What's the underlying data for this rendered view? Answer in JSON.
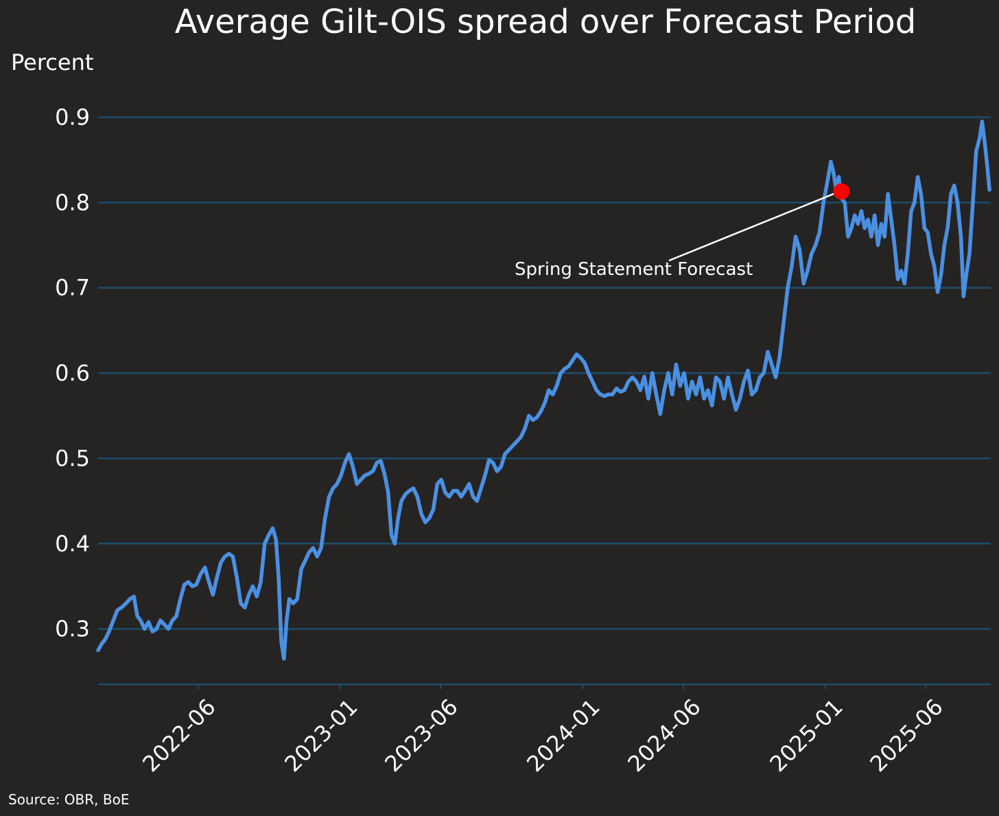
{
  "chart_data": {
    "type": "line",
    "title": "Average Gilt-OIS spread over Forecast Period",
    "ylabel": "Percent",
    "xlabel": "",
    "source": "Source: OBR, BoE",
    "ylim": [
      0.235,
      0.9
    ],
    "xlim": [
      "2022-01-01",
      "2025-09-07"
    ],
    "yticks": [
      0.3,
      0.4,
      0.5,
      0.6,
      0.7,
      0.8,
      0.9
    ],
    "ytick_labels": [
      "0.3",
      "0.4",
      "0.5",
      "0.6",
      "0.7",
      "0.8",
      "0.9"
    ],
    "xticks": [
      "2022-06",
      "2023-01",
      "2023-06",
      "2024-01",
      "2024-06",
      "2025-01",
      "2025-06"
    ],
    "grid": "horizontal",
    "colors": {
      "background": "#262323",
      "line": "#4a90e2",
      "grid": "#1b4f6e",
      "marker": "#ff0000",
      "text": "#ffffff"
    },
    "series": [
      {
        "name": "Average Gilt-OIS spread",
        "points": [
          [
            "2022-01-01",
            0.275
          ],
          [
            "2022-01-06",
            0.282
          ],
          [
            "2022-01-12",
            0.288
          ],
          [
            "2022-01-18",
            0.298
          ],
          [
            "2022-01-24",
            0.31
          ],
          [
            "2022-01-30",
            0.322
          ],
          [
            "2022-02-05",
            0.325
          ],
          [
            "2022-02-12",
            0.33
          ],
          [
            "2022-02-18",
            0.335
          ],
          [
            "2022-02-24",
            0.338
          ],
          [
            "2022-03-01",
            0.315
          ],
          [
            "2022-03-06",
            0.31
          ],
          [
            "2022-03-12",
            0.3
          ],
          [
            "2022-03-18",
            0.308
          ],
          [
            "2022-03-24",
            0.297
          ],
          [
            "2022-03-30",
            0.3
          ],
          [
            "2022-04-05",
            0.31
          ],
          [
            "2022-04-11",
            0.305
          ],
          [
            "2022-04-17",
            0.3
          ],
          [
            "2022-04-23",
            0.31
          ],
          [
            "2022-04-29",
            0.315
          ],
          [
            "2022-05-05",
            0.335
          ],
          [
            "2022-05-11",
            0.352
          ],
          [
            "2022-05-17",
            0.355
          ],
          [
            "2022-05-23",
            0.35
          ],
          [
            "2022-05-29",
            0.352
          ],
          [
            "2022-06-05",
            0.365
          ],
          [
            "2022-06-11",
            0.372
          ],
          [
            "2022-06-17",
            0.355
          ],
          [
            "2022-06-23",
            0.34
          ],
          [
            "2022-06-29",
            0.36
          ],
          [
            "2022-07-05",
            0.378
          ],
          [
            "2022-07-11",
            0.385
          ],
          [
            "2022-07-17",
            0.388
          ],
          [
            "2022-07-23",
            0.385
          ],
          [
            "2022-07-29",
            0.36
          ],
          [
            "2022-08-04",
            0.33
          ],
          [
            "2022-08-10",
            0.325
          ],
          [
            "2022-08-16",
            0.34
          ],
          [
            "2022-08-22",
            0.35
          ],
          [
            "2022-08-28",
            0.338
          ],
          [
            "2022-09-03",
            0.355
          ],
          [
            "2022-09-09",
            0.4
          ],
          [
            "2022-09-15",
            0.41
          ],
          [
            "2022-09-21",
            0.418
          ],
          [
            "2022-09-26",
            0.405
          ],
          [
            "2022-09-30",
            0.36
          ],
          [
            "2022-10-04",
            0.285
          ],
          [
            "2022-10-08",
            0.265
          ],
          [
            "2022-10-12",
            0.31
          ],
          [
            "2022-10-16",
            0.335
          ],
          [
            "2022-10-22",
            0.33
          ],
          [
            "2022-10-28",
            0.335
          ],
          [
            "2022-11-03",
            0.37
          ],
          [
            "2022-11-09",
            0.38
          ],
          [
            "2022-11-15",
            0.39
          ],
          [
            "2022-11-21",
            0.395
          ],
          [
            "2022-11-27",
            0.385
          ],
          [
            "2022-12-03",
            0.395
          ],
          [
            "2022-12-09",
            0.43
          ],
          [
            "2022-12-15",
            0.455
          ],
          [
            "2022-12-21",
            0.465
          ],
          [
            "2022-12-27",
            0.47
          ],
          [
            "2023-01-02",
            0.48
          ],
          [
            "2023-01-08",
            0.495
          ],
          [
            "2023-01-14",
            0.505
          ],
          [
            "2023-01-20",
            0.49
          ],
          [
            "2023-01-26",
            0.47
          ],
          [
            "2023-02-01",
            0.475
          ],
          [
            "2023-02-07",
            0.48
          ],
          [
            "2023-02-13",
            0.482
          ],
          [
            "2023-02-19",
            0.485
          ],
          [
            "2023-02-25",
            0.495
          ],
          [
            "2023-03-03",
            0.497
          ],
          [
            "2023-03-09",
            0.48
          ],
          [
            "2023-03-14",
            0.46
          ],
          [
            "2023-03-19",
            0.41
          ],
          [
            "2023-03-24",
            0.4
          ],
          [
            "2023-03-29",
            0.43
          ],
          [
            "2023-04-03",
            0.45
          ],
          [
            "2023-04-09",
            0.458
          ],
          [
            "2023-04-15",
            0.462
          ],
          [
            "2023-04-21",
            0.465
          ],
          [
            "2023-04-27",
            0.455
          ],
          [
            "2023-05-03",
            0.435
          ],
          [
            "2023-05-09",
            0.425
          ],
          [
            "2023-05-15",
            0.43
          ],
          [
            "2023-05-21",
            0.44
          ],
          [
            "2023-05-27",
            0.47
          ],
          [
            "2023-06-02",
            0.475
          ],
          [
            "2023-06-08",
            0.46
          ],
          [
            "2023-06-14",
            0.455
          ],
          [
            "2023-06-20",
            0.462
          ],
          [
            "2023-06-26",
            0.462
          ],
          [
            "2023-07-02",
            0.455
          ],
          [
            "2023-07-08",
            0.462
          ],
          [
            "2023-07-14",
            0.47
          ],
          [
            "2023-07-20",
            0.455
          ],
          [
            "2023-07-26",
            0.45
          ],
          [
            "2023-08-01",
            0.465
          ],
          [
            "2023-08-07",
            0.48
          ],
          [
            "2023-08-13",
            0.498
          ],
          [
            "2023-08-19",
            0.495
          ],
          [
            "2023-08-25",
            0.485
          ],
          [
            "2023-08-31",
            0.49
          ],
          [
            "2023-09-06",
            0.505
          ],
          [
            "2023-09-12",
            0.51
          ],
          [
            "2023-09-18",
            0.515
          ],
          [
            "2023-09-24",
            0.52
          ],
          [
            "2023-09-30",
            0.525
          ],
          [
            "2023-10-06",
            0.535
          ],
          [
            "2023-10-12",
            0.55
          ],
          [
            "2023-10-18",
            0.545
          ],
          [
            "2023-10-24",
            0.548
          ],
          [
            "2023-10-30",
            0.555
          ],
          [
            "2023-11-05",
            0.565
          ],
          [
            "2023-11-11",
            0.58
          ],
          [
            "2023-11-17",
            0.575
          ],
          [
            "2023-11-23",
            0.585
          ],
          [
            "2023-11-29",
            0.6
          ],
          [
            "2023-12-05",
            0.605
          ],
          [
            "2023-12-11",
            0.608
          ],
          [
            "2023-12-17",
            0.615
          ],
          [
            "2023-12-23",
            0.622
          ],
          [
            "2023-12-29",
            0.618
          ],
          [
            "2024-01-04",
            0.612
          ],
          [
            "2024-01-10",
            0.6
          ],
          [
            "2024-01-16",
            0.59
          ],
          [
            "2024-01-22",
            0.58
          ],
          [
            "2024-01-28",
            0.575
          ],
          [
            "2024-02-03",
            0.573
          ],
          [
            "2024-02-09",
            0.575
          ],
          [
            "2024-02-15",
            0.575
          ],
          [
            "2024-02-21",
            0.582
          ],
          [
            "2024-02-27",
            0.578
          ],
          [
            "2024-03-04",
            0.58
          ],
          [
            "2024-03-10",
            0.59
          ],
          [
            "2024-03-16",
            0.595
          ],
          [
            "2024-03-22",
            0.59
          ],
          [
            "2024-03-28",
            0.58
          ],
          [
            "2024-04-03",
            0.596
          ],
          [
            "2024-04-09",
            0.57
          ],
          [
            "2024-04-15",
            0.6
          ],
          [
            "2024-04-21",
            0.575
          ],
          [
            "2024-04-27",
            0.552
          ],
          [
            "2024-05-03",
            0.58
          ],
          [
            "2024-05-09",
            0.6
          ],
          [
            "2024-05-15",
            0.575
          ],
          [
            "2024-05-21",
            0.61
          ],
          [
            "2024-05-27",
            0.585
          ],
          [
            "2024-06-02",
            0.6
          ],
          [
            "2024-06-08",
            0.57
          ],
          [
            "2024-06-14",
            0.59
          ],
          [
            "2024-06-20",
            0.575
          ],
          [
            "2024-06-26",
            0.595
          ],
          [
            "2024-07-02",
            0.57
          ],
          [
            "2024-07-08",
            0.58
          ],
          [
            "2024-07-14",
            0.562
          ],
          [
            "2024-07-20",
            0.595
          ],
          [
            "2024-07-26",
            0.59
          ],
          [
            "2024-08-01",
            0.57
          ],
          [
            "2024-08-07",
            0.595
          ],
          [
            "2024-08-13",
            0.575
          ],
          [
            "2024-08-19",
            0.557
          ],
          [
            "2024-08-25",
            0.57
          ],
          [
            "2024-08-31",
            0.59
          ],
          [
            "2024-09-06",
            0.603
          ],
          [
            "2024-09-12",
            0.575
          ],
          [
            "2024-09-18",
            0.58
          ],
          [
            "2024-09-24",
            0.595
          ],
          [
            "2024-09-30",
            0.6
          ],
          [
            "2024-10-06",
            0.625
          ],
          [
            "2024-10-12",
            0.61
          ],
          [
            "2024-10-18",
            0.595
          ],
          [
            "2024-10-24",
            0.62
          ],
          [
            "2024-10-30",
            0.66
          ],
          [
            "2024-11-05",
            0.7
          ],
          [
            "2024-11-11",
            0.725
          ],
          [
            "2024-11-17",
            0.76
          ],
          [
            "2024-11-23",
            0.745
          ],
          [
            "2024-11-29",
            0.705
          ],
          [
            "2024-12-05",
            0.72
          ],
          [
            "2024-12-11",
            0.74
          ],
          [
            "2024-12-17",
            0.75
          ],
          [
            "2024-12-23",
            0.765
          ],
          [
            "2024-12-29",
            0.8
          ],
          [
            "2025-01-04",
            0.825
          ],
          [
            "2025-01-09",
            0.848
          ],
          [
            "2025-01-13",
            0.835
          ],
          [
            "2025-01-17",
            0.815
          ],
          [
            "2025-01-21",
            0.83
          ],
          [
            "2025-01-25",
            0.805
          ],
          [
            "2025-01-30",
            0.8
          ],
          [
            "2025-02-04",
            0.76
          ],
          [
            "2025-02-09",
            0.77
          ],
          [
            "2025-02-14",
            0.785
          ],
          [
            "2025-02-19",
            0.775
          ],
          [
            "2025-02-24",
            0.79
          ],
          [
            "2025-03-01",
            0.77
          ],
          [
            "2025-03-06",
            0.78
          ],
          [
            "2025-03-11",
            0.76
          ],
          [
            "2025-03-16",
            0.785
          ],
          [
            "2025-03-21",
            0.75
          ],
          [
            "2025-03-26",
            0.775
          ],
          [
            "2025-03-31",
            0.76
          ],
          [
            "2025-04-05",
            0.81
          ],
          [
            "2025-04-10",
            0.78
          ],
          [
            "2025-04-15",
            0.75
          ],
          [
            "2025-04-20",
            0.71
          ],
          [
            "2025-04-25",
            0.72
          ],
          [
            "2025-04-30",
            0.705
          ],
          [
            "2025-05-05",
            0.74
          ],
          [
            "2025-05-10",
            0.79
          ],
          [
            "2025-05-15",
            0.8
          ],
          [
            "2025-05-20",
            0.83
          ],
          [
            "2025-05-25",
            0.81
          ],
          [
            "2025-05-30",
            0.77
          ],
          [
            "2025-06-04",
            0.765
          ],
          [
            "2025-06-09",
            0.74
          ],
          [
            "2025-06-14",
            0.725
          ],
          [
            "2025-06-19",
            0.695
          ],
          [
            "2025-06-24",
            0.715
          ],
          [
            "2025-06-29",
            0.75
          ],
          [
            "2025-07-04",
            0.77
          ],
          [
            "2025-07-09",
            0.81
          ],
          [
            "2025-07-14",
            0.82
          ],
          [
            "2025-07-19",
            0.8
          ],
          [
            "2025-07-24",
            0.76
          ],
          [
            "2025-07-28",
            0.69
          ],
          [
            "2025-08-01",
            0.715
          ],
          [
            "2025-08-06",
            0.74
          ],
          [
            "2025-08-11",
            0.8
          ],
          [
            "2025-08-16",
            0.86
          ],
          [
            "2025-08-21",
            0.875
          ],
          [
            "2025-08-25",
            0.895
          ],
          [
            "2025-08-29",
            0.87
          ],
          [
            "2025-09-02",
            0.84
          ],
          [
            "2025-09-05",
            0.815
          ]
        ]
      }
    ],
    "annotations": [
      {
        "text": "Spring Statement Forecast",
        "x": "2025-01-25",
        "y": 0.813
      }
    ]
  }
}
